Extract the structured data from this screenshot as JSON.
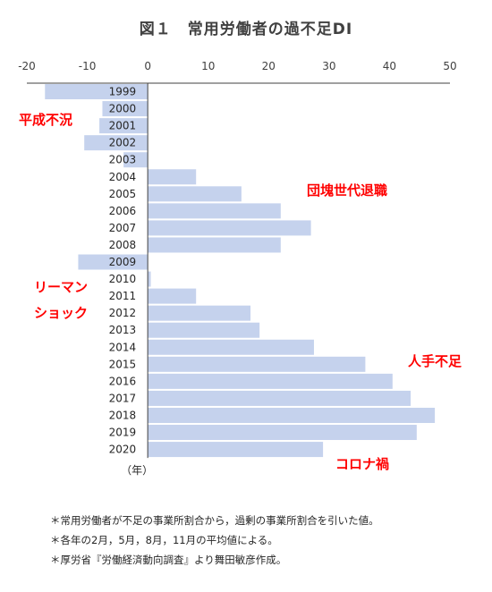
{
  "chart_data": {
    "type": "bar",
    "orientation": "horizontal",
    "title": "図１　常用労働者の過不足DI",
    "xlim": [
      -20,
      50
    ],
    "xticks": [
      -20,
      -10,
      0,
      10,
      20,
      30,
      40,
      50
    ],
    "xtick_labels": [
      "-20",
      "-10",
      "0",
      "10",
      "20",
      "30",
      "40",
      "50"
    ],
    "categories": [
      "1999",
      "2000",
      "2001",
      "2002",
      "2003",
      "2004",
      "2005",
      "2006",
      "2007",
      "2008",
      "2009",
      "2010",
      "2011",
      "2012",
      "2013",
      "2014",
      "2015",
      "2016",
      "2017",
      "2018",
      "2019",
      "2020"
    ],
    "values": [
      -17,
      -7.5,
      -8,
      -10.5,
      -4,
      8,
      15.5,
      22,
      27,
      22,
      -11.5,
      0.5,
      8,
      17,
      18.5,
      27.5,
      36,
      40.5,
      43.5,
      47.5,
      44.5,
      29
    ],
    "bar_color": "#c5d2ed",
    "unit_label": "（年）",
    "annotations": [
      {
        "text": "平成不況",
        "color": "#ff0000"
      },
      {
        "text": "団塊世代退職",
        "color": "#ff0000"
      },
      {
        "text": "リーマン",
        "color": "#ff0000"
      },
      {
        "text": "ショック",
        "color": "#ff0000"
      },
      {
        "text": "人手不足",
        "color": "#ff0000"
      },
      {
        "text": "コロナ禍",
        "color": "#ff0000"
      }
    ],
    "grid": false,
    "legend": "none"
  },
  "notes": [
    "＊常用労働者が不足の事業所割合から，過剰の事業所割合を引いた値。",
    "＊各年の2月，5月，8月，11月の平均値による。",
    "＊厚労省『労働経済動向調査』より舞田敏彦作成。"
  ]
}
